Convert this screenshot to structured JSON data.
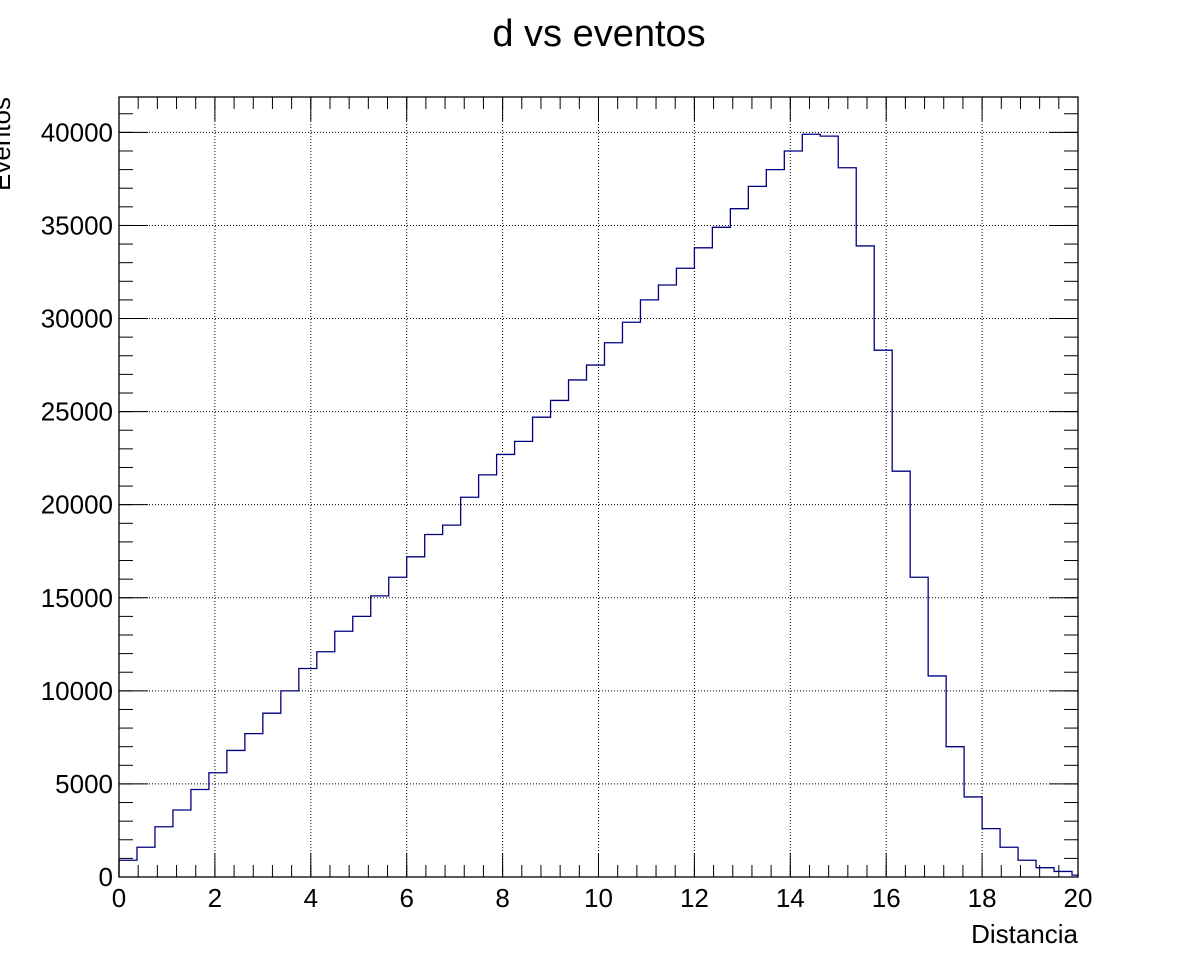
{
  "chart_data": {
    "type": "bar",
    "title": "d vs eventos",
    "xlabel": "Distancia",
    "ylabel": "Eventos",
    "xlim": [
      0,
      20
    ],
    "ylim": [
      0,
      41900
    ],
    "grid": true,
    "x_ticks": [
      "0",
      "2",
      "4",
      "6",
      "8",
      "10",
      "12",
      "14",
      "16",
      "18",
      "20"
    ],
    "y_ticks": [
      "0",
      "5000",
      "10000",
      "15000",
      "20000",
      "25000",
      "30000",
      "35000",
      "40000"
    ],
    "line_color": "#000080",
    "bin_edges": [
      0.0,
      0.375,
      0.75,
      1.125,
      1.5,
      1.875,
      2.25,
      2.625,
      3.0,
      3.375,
      3.75,
      4.125,
      4.5,
      4.875,
      5.25,
      5.625,
      6.0,
      6.375,
      6.75,
      7.125,
      7.5,
      7.875,
      8.25,
      8.625,
      9.0,
      9.375,
      9.75,
      10.125,
      10.5,
      10.875,
      11.25,
      11.625,
      12.0,
      12.375,
      12.75,
      13.125,
      13.5,
      13.875,
      14.25,
      14.625,
      15.0,
      15.375,
      15.75,
      16.125,
      16.5,
      16.875,
      17.25,
      17.625,
      18.0,
      18.375,
      18.75,
      19.125,
      19.5,
      19.875,
      20.0
    ],
    "values": [
      900,
      1600,
      2700,
      3600,
      4700,
      5600,
      6800,
      7700,
      8800,
      10000,
      11200,
      12100,
      13200,
      14000,
      15100,
      16100,
      17200,
      18400,
      18900,
      20400,
      21600,
      22700,
      23400,
      24700,
      25600,
      26700,
      27500,
      28700,
      29800,
      31000,
      31800,
      32700,
      33800,
      34900,
      35900,
      37100,
      38000,
      39000,
      39900,
      39800,
      38100,
      33900,
      28300,
      21800,
      16100,
      10800,
      7000,
      4300,
      2600,
      1600,
      900,
      500,
      300,
      100
    ]
  }
}
